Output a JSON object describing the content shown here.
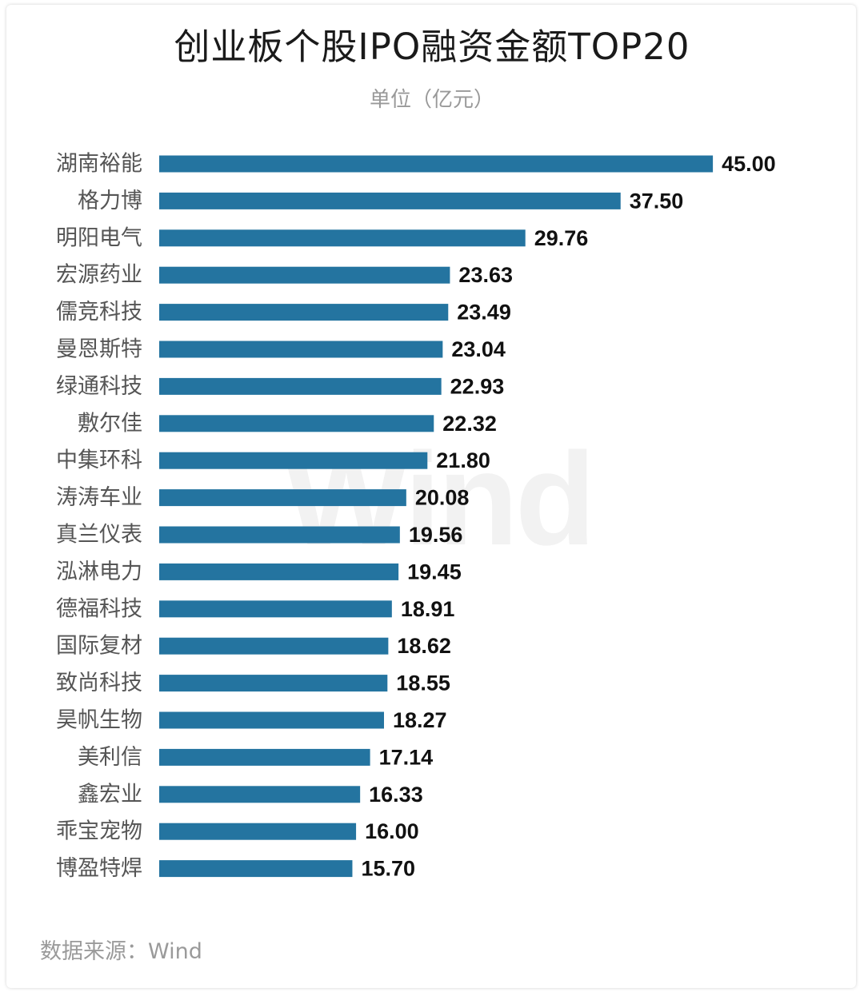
{
  "title": "创业板个股IPO融资金额TOP20",
  "subtitle": "单位（亿元）",
  "source": "数据来源：Wind",
  "watermark": "Wind",
  "colors": {
    "bar": "#2474a0",
    "label": "#555555",
    "value": "#111111"
  },
  "chart_data": {
    "type": "bar",
    "orientation": "horizontal",
    "title": "创业板个股IPO融资金额TOP20",
    "subtitle": "单位（亿元）",
    "categories": [
      "湖南裕能",
      "格力博",
      "明阳电气",
      "宏源药业",
      "儒竞科技",
      "曼恩斯特",
      "绿通科技",
      "敷尔佳",
      "中集环科",
      "涛涛车业",
      "真兰仪表",
      "泓淋电力",
      "德福科技",
      "国际复材",
      "致尚科技",
      "昊帆生物",
      "美利信",
      "鑫宏业",
      "乖宝宠物",
      "博盈特焊"
    ],
    "values": [
      45.0,
      37.5,
      29.76,
      23.63,
      23.49,
      23.04,
      22.93,
      22.32,
      21.8,
      20.08,
      19.56,
      19.45,
      18.91,
      18.62,
      18.55,
      18.27,
      17.14,
      16.33,
      16.0,
      15.7
    ],
    "value_labels": [
      "45.00",
      "37.50",
      "29.76",
      "23.63",
      "23.49",
      "23.04",
      "22.93",
      "22.32",
      "21.80",
      "20.08",
      "19.56",
      "19.45",
      "18.91",
      "18.62",
      "18.55",
      "18.27",
      "17.14",
      "16.33",
      "16.00",
      "15.70"
    ],
    "grid": false,
    "legend": "none"
  }
}
